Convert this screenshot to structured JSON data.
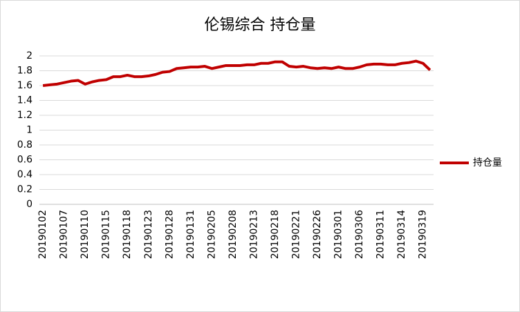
{
  "chart_data": {
    "type": "line",
    "title": "伦锡综合 持仓量",
    "categories": [
      "20190102",
      null,
      null,
      "20190107",
      null,
      null,
      "20190110",
      null,
      null,
      "20190115",
      null,
      null,
      "20190118",
      null,
      null,
      "20190123",
      null,
      null,
      "20190128",
      null,
      null,
      "20190131",
      null,
      null,
      "20190205",
      null,
      null,
      "20190208",
      null,
      null,
      "20190213",
      null,
      null,
      "20190218",
      null,
      null,
      "20190221",
      null,
      null,
      "20190226",
      null,
      null,
      "20190301",
      null,
      null,
      "20190306",
      null,
      null,
      "20190311",
      null,
      null,
      "20190314",
      null,
      null,
      "20190319",
      null
    ],
    "series": [
      {
        "name": "持仓量",
        "color": "#c00000",
        "values": [
          1.6,
          1.61,
          1.62,
          1.64,
          1.66,
          1.67,
          1.62,
          1.65,
          1.67,
          1.68,
          1.72,
          1.72,
          1.74,
          1.72,
          1.72,
          1.73,
          1.75,
          1.78,
          1.79,
          1.83,
          1.84,
          1.85,
          1.85,
          1.86,
          1.83,
          1.85,
          1.87,
          1.87,
          1.87,
          1.88,
          1.88,
          1.9,
          1.9,
          1.92,
          1.92,
          1.86,
          1.85,
          1.86,
          1.84,
          1.83,
          1.84,
          1.83,
          1.85,
          1.83,
          1.83,
          1.85,
          1.88,
          1.89,
          1.89,
          1.88,
          1.88,
          1.9,
          1.91,
          1.93,
          1.9,
          1.81
        ]
      }
    ],
    "ylim": [
      0,
      2
    ],
    "yticks": [
      0,
      0.2,
      0.4,
      0.6,
      0.8,
      1,
      1.2,
      1.4,
      1.6,
      1.8,
      2
    ],
    "grid": true,
    "legend": "right"
  }
}
